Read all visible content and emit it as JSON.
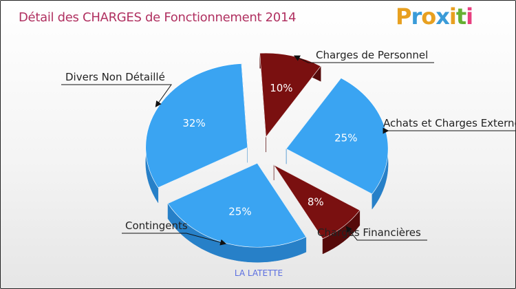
{
  "chart_data": {
    "type": "pie",
    "title": "Détail des CHARGES de Fonctionnement 2014",
    "categories": [
      "Charges de Personnel",
      "Achats et Charges Externes",
      "Charges Financières",
      "Contingents",
      "Divers Non Détaillé"
    ],
    "values": [
      10,
      25,
      8,
      25,
      32
    ],
    "labels": [
      "10%",
      "25%",
      "8%",
      "25%",
      "32%"
    ],
    "colors": [
      "#7a1010",
      "#3aa4f2",
      "#7a1010",
      "#3aa4f2",
      "#3aa4f2"
    ],
    "side_colors": [
      "#560a0a",
      "#2780c8",
      "#560a0a",
      "#2780c8",
      "#2780c8"
    ],
    "subtitle": "LA LATETTE"
  },
  "brand": {
    "name": "Proxiti",
    "letters": [
      "P",
      "r",
      "o",
      "x",
      "i",
      "t",
      "i"
    ],
    "letter_colors": [
      "#e8a020",
      "#3a9bd8",
      "#e8a020",
      "#3a9bd8",
      "#e8a020",
      "#66b032",
      "#e84080"
    ]
  },
  "colors": {
    "title": "#b03060",
    "subtitle": "#5a6ee0"
  }
}
